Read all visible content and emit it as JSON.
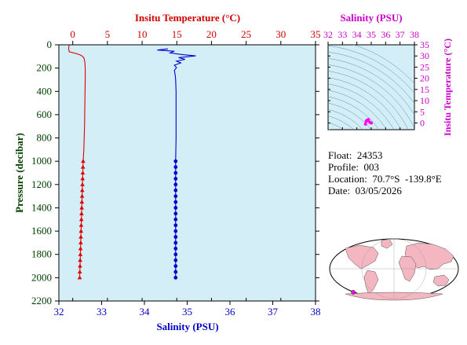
{
  "chart_data": [
    {
      "type": "line",
      "name": "main-profile",
      "top_axis": {
        "label": "Insitu Temperature (°C)",
        "range": [
          -2,
          35
        ],
        "ticks": [
          0,
          5,
          10,
          15,
          20,
          25,
          30,
          35
        ],
        "color": "#d00000"
      },
      "bottom_axis": {
        "label": "Salinity (PSU)",
        "range": [
          32,
          38
        ],
        "ticks": [
          32,
          33,
          34,
          35,
          36,
          37,
          38
        ],
        "color": "#0000c8"
      },
      "y_axis": {
        "label": "Pressure (decibar)",
        "range": [
          0,
          2200
        ],
        "ticks": [
          0,
          200,
          400,
          600,
          800,
          1000,
          1200,
          1400,
          1600,
          1800,
          2000,
          2200
        ],
        "inverted": true,
        "color": "#004000"
      },
      "background": "#d4eef8",
      "series": [
        {
          "kind": "temperature",
          "color": "#e00000",
          "marker": "triangle",
          "line_points": [
            [
              -0.5,
              0
            ],
            [
              -0.6,
              30
            ],
            [
              -0.5,
              60
            ],
            [
              0.5,
              75
            ],
            [
              1.2,
              90
            ],
            [
              1.6,
              110
            ],
            [
              1.75,
              150
            ],
            [
              1.8,
              200
            ],
            [
              1.8,
              300
            ],
            [
              1.75,
              500
            ],
            [
              1.7,
              700
            ],
            [
              1.6,
              900
            ],
            [
              1.5,
              1000
            ],
            [
              1.4,
              1200
            ],
            [
              1.3,
              1400
            ],
            [
              1.2,
              1600
            ],
            [
              1.1,
              1800
            ],
            [
              1.0,
              2000
            ]
          ],
          "marker_points": [
            [
              1.5,
              1000
            ],
            [
              1.47,
              1050
            ],
            [
              1.45,
              1100
            ],
            [
              1.42,
              1150
            ],
            [
              1.4,
              1200
            ],
            [
              1.37,
              1250
            ],
            [
              1.35,
              1300
            ],
            [
              1.32,
              1350
            ],
            [
              1.3,
              1400
            ],
            [
              1.27,
              1450
            ],
            [
              1.25,
              1500
            ],
            [
              1.22,
              1550
            ],
            [
              1.2,
              1600
            ],
            [
              1.17,
              1650
            ],
            [
              1.15,
              1700
            ],
            [
              1.12,
              1750
            ],
            [
              1.1,
              1800
            ],
            [
              1.07,
              1850
            ],
            [
              1.05,
              1900
            ],
            [
              1.02,
              1950
            ],
            [
              1.0,
              2000
            ]
          ]
        },
        {
          "kind": "salinity",
          "color": "#0000d0",
          "marker": "circle",
          "line_points": [
            [
              34.55,
              35
            ],
            [
              34.3,
              45
            ],
            [
              34.7,
              55
            ],
            [
              34.6,
              70
            ],
            [
              34.9,
              85
            ],
            [
              35.2,
              95
            ],
            [
              34.8,
              110
            ],
            [
              34.95,
              125
            ],
            [
              34.75,
              140
            ],
            [
              34.85,
              155
            ],
            [
              34.7,
              175
            ],
            [
              34.75,
              195
            ],
            [
              34.7,
              220
            ],
            [
              34.72,
              260
            ],
            [
              34.73,
              300
            ],
            [
              34.74,
              400
            ],
            [
              34.74,
              600
            ],
            [
              34.74,
              800
            ],
            [
              34.73,
              1000
            ],
            [
              34.73,
              2000
            ]
          ],
          "marker_points": [
            [
              34.73,
              1000
            ],
            [
              34.73,
              1050
            ],
            [
              34.73,
              1100
            ],
            [
              34.73,
              1150
            ],
            [
              34.73,
              1200
            ],
            [
              34.73,
              1250
            ],
            [
              34.73,
              1300
            ],
            [
              34.73,
              1350
            ],
            [
              34.73,
              1400
            ],
            [
              34.73,
              1450
            ],
            [
              34.73,
              1500
            ],
            [
              34.73,
              1550
            ],
            [
              34.73,
              1600
            ],
            [
              34.73,
              1650
            ],
            [
              34.73,
              1700
            ],
            [
              34.73,
              1750
            ],
            [
              34.73,
              1800
            ],
            [
              34.73,
              1850
            ],
            [
              34.73,
              1900
            ],
            [
              34.73,
              1950
            ],
            [
              34.73,
              2000
            ]
          ]
        }
      ]
    },
    {
      "type": "scatter",
      "name": "ts-diagram",
      "x_axis": {
        "label": "Salinity (PSU)",
        "range": [
          32,
          38
        ],
        "ticks": [
          32,
          33,
          34,
          35,
          36,
          37,
          38
        ],
        "color": "#cc00cc"
      },
      "y_axis": {
        "label": "Insitu Temperature (°C)",
        "range": [
          -3,
          35
        ],
        "ticks": [
          0,
          5,
          10,
          15,
          20,
          25,
          30,
          35
        ],
        "color": "#cc00cc"
      },
      "background": "#d4eef8",
      "contour_color": "#5a8fa8",
      "point_color": "#ff00ff",
      "points": [
        [
          34.6,
          -0.5
        ],
        [
          34.7,
          1.0
        ],
        [
          34.8,
          1.5
        ],
        [
          34.75,
          1.2
        ],
        [
          34.73,
          1.3
        ],
        [
          34.9,
          0.3
        ],
        [
          35.0,
          0.0
        ],
        [
          34.65,
          0.8
        ]
      ]
    }
  ],
  "float_info": {
    "float_line": "Float:  24353",
    "profile_line": "Profile:  003",
    "location_line": "Location:  70.7°S  -139.8°E",
    "date_line": "Date:  03/05/2026"
  },
  "map": {
    "ocean_color": "#ffffff",
    "land_color": "#f4b6c0",
    "marker_color": "#ff00ff",
    "float_lon": -139.8,
    "float_lat": -70.7
  }
}
